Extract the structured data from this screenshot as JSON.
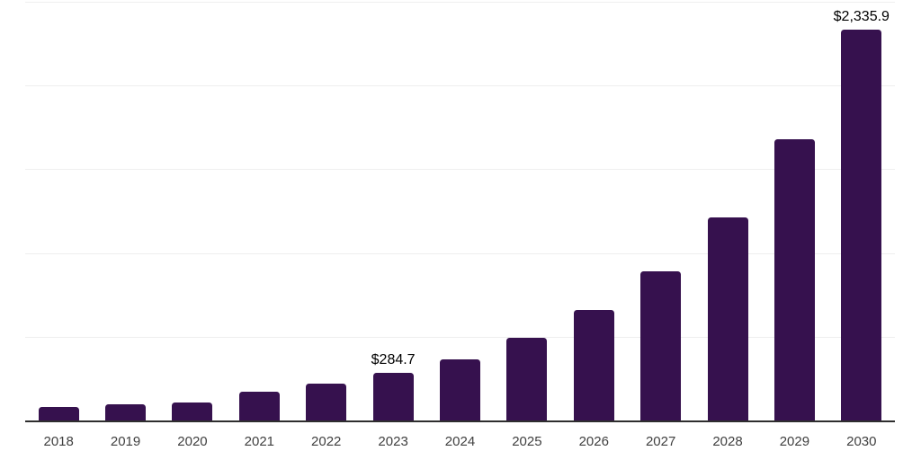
{
  "chart": {
    "background_color": "#ffffff",
    "bar_color": "#36114e",
    "gridline_color": "#efefef",
    "axis_line_color": "#2e2e2e",
    "tick_label_color": "#404040",
    "data_label_color": "#000000"
  },
  "chart_data": {
    "type": "bar",
    "title": "",
    "xlabel": "",
    "ylabel": "",
    "categories": [
      "2018",
      "2019",
      "2020",
      "2021",
      "2022",
      "2023",
      "2024",
      "2025",
      "2026",
      "2027",
      "2028",
      "2029",
      "2030"
    ],
    "values": [
      80,
      95,
      110,
      170,
      220,
      284.7,
      367,
      495,
      660,
      890,
      1210,
      1680,
      2335.9
    ],
    "data_labels": [
      "",
      "",
      "",
      "",
      "",
      "$284.7",
      "",
      "",
      "",
      "",
      "",
      "",
      "$2,335.9"
    ],
    "ylim": [
      0,
      2500
    ],
    "gridline_values": [
      500,
      1000,
      1500,
      2000,
      2500
    ],
    "grid": "horizontal",
    "legend_position": "none",
    "y_axis_labels_visible": false
  }
}
